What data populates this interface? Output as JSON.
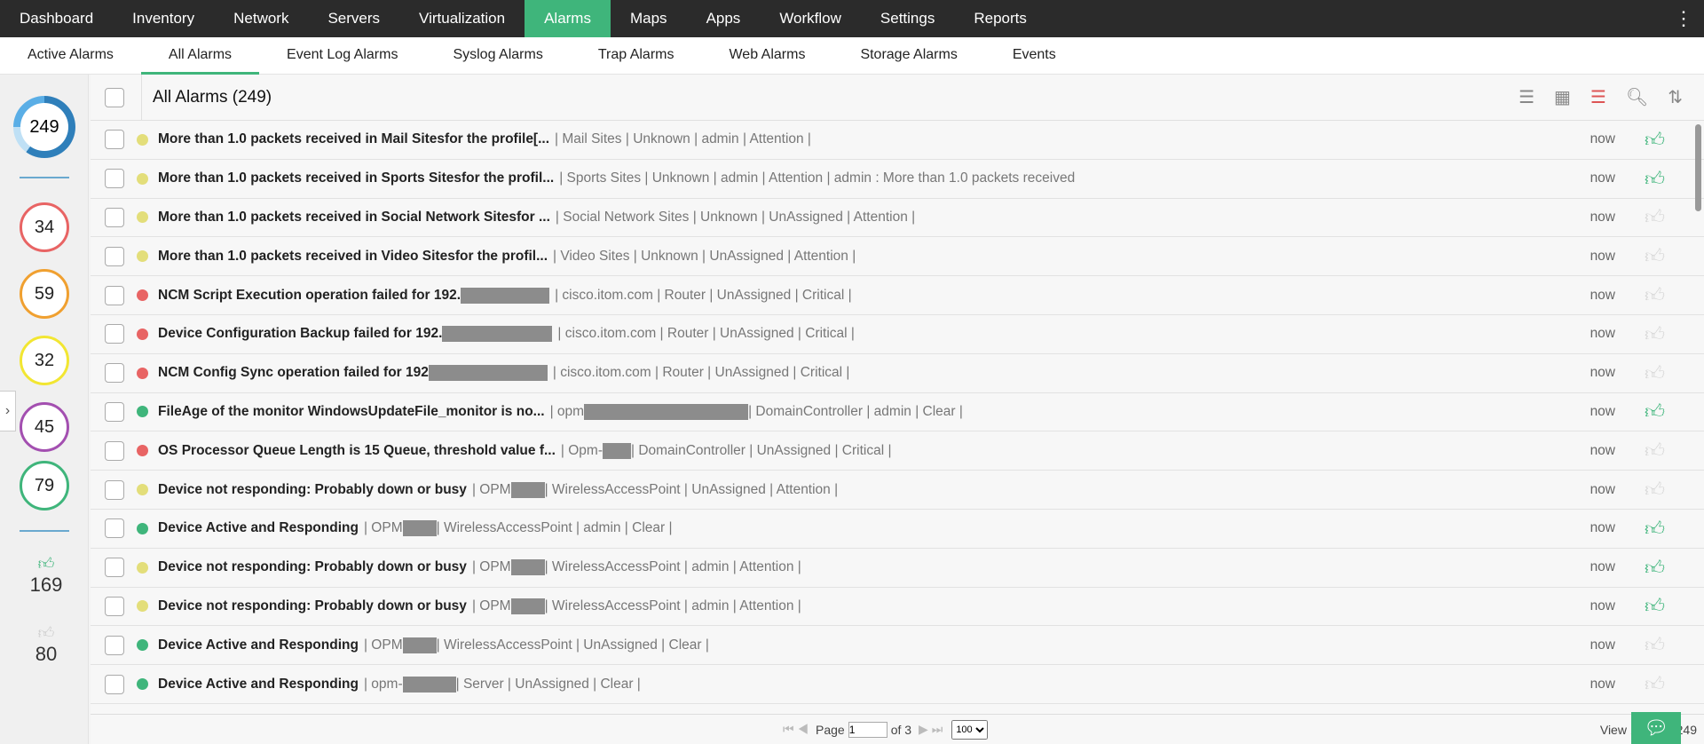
{
  "topnav": {
    "tabs": [
      "Dashboard",
      "Inventory",
      "Network",
      "Servers",
      "Virtualization",
      "Alarms",
      "Maps",
      "Apps",
      "Workflow",
      "Settings",
      "Reports"
    ],
    "active": "Alarms"
  },
  "subnav": {
    "tabs": [
      "Active Alarms",
      "All Alarms",
      "Event Log Alarms",
      "Syslog Alarms",
      "Trap Alarms",
      "Web Alarms",
      "Storage Alarms",
      "Events"
    ],
    "active": "All Alarms"
  },
  "sidebar": {
    "total": "249",
    "critical": "34",
    "trouble": "59",
    "attention": "32",
    "service_down": "45",
    "clear": "79",
    "acknowledged": "169",
    "unacknowledged": "80"
  },
  "colors": {
    "accent": "#3fb57b",
    "critical": "#e86464",
    "attention": "#e3de7a",
    "clear": "#3fb57b"
  },
  "header": {
    "title": "All Alarms (249)"
  },
  "rows": [
    {
      "msg": "More than 1.0 packets received in Mail Sitesfor the profile[...",
      "details": "| Mail Sites | Unknown | admin | Attention |",
      "severity": "attention",
      "time": "now",
      "ack": true
    },
    {
      "msg": "More than 1.0 packets received in Sports Sitesfor the profil...",
      "details": "| Sports Sites | Unknown | admin | Attention | admin : More than 1.0 packets received",
      "severity": "attention",
      "time": "now",
      "ack": true
    },
    {
      "msg": "More than 1.0 packets received in Social Network Sitesfor ...",
      "details": "| Social Network Sites | Unknown | UnAssigned | Attention |",
      "severity": "attention",
      "time": "now",
      "ack": false
    },
    {
      "msg": "More than 1.0 packets received in Video Sitesfor the profil...",
      "details": "| Video Sites | Unknown | UnAssigned | Attention |",
      "severity": "attention",
      "time": "now",
      "ack": false
    },
    {
      "msg": "NCM Script Execution operation failed for 192.",
      "details": "| cisco.itom.com | Router | UnAssigned | Critical |",
      "severity": "critical",
      "time": "now",
      "ack": false,
      "redact": 100
    },
    {
      "msg": "Device Configuration Backup failed for 192.",
      "details": "| cisco.itom.com | Router | UnAssigned | Critical |",
      "severity": "critical",
      "time": "now",
      "ack": false,
      "redact": 124
    },
    {
      "msg": "NCM Config Sync operation failed for 192",
      "details": "| cisco.itom.com | Router | UnAssigned | Critical |",
      "severity": "critical",
      "time": "now",
      "ack": false,
      "redact": 134
    },
    {
      "msg": "FileAge of the monitor WindowsUpdateFile_monitor is no...",
      "details": "| opm",
      "details2": "| DomainController | admin | Clear |",
      "severity": "clear",
      "time": "now",
      "ack": true,
      "redact": 185
    },
    {
      "msg": "OS Processor Queue Length is 15 Queue, threshold value f...",
      "details": "| Opm-",
      "details2": "| DomainController | UnAssigned | Critical |",
      "severity": "critical",
      "time": "now",
      "ack": false,
      "redact": 32
    },
    {
      "msg": "Device not responding: Probably down or busy",
      "details": "| OPM",
      "details2": "| WirelessAccessPoint | UnAssigned | Attention |",
      "severity": "attention",
      "time": "now",
      "ack": false,
      "redact": 38
    },
    {
      "msg": "Device Active and Responding",
      "details": "| OPM",
      "details2": "| WirelessAccessPoint | admin | Clear |",
      "severity": "clear",
      "time": "now",
      "ack": true,
      "redact": 38
    },
    {
      "msg": "Device not responding: Probably down or busy",
      "details": "| OPM",
      "details2": "| WirelessAccessPoint | admin | Attention |",
      "severity": "attention",
      "time": "now",
      "ack": true,
      "redact": 38
    },
    {
      "msg": "Device not responding: Probably down or busy",
      "details": "| OPM",
      "details2": "| WirelessAccessPoint | admin | Attention |",
      "severity": "attention",
      "time": "now",
      "ack": true,
      "redact": 38
    },
    {
      "msg": "Device Active and Responding",
      "details": "| OPM",
      "details2": "| WirelessAccessPoint | UnAssigned | Clear |",
      "severity": "clear",
      "time": "now",
      "ack": false,
      "redact": 38
    },
    {
      "msg": "Device Active and Responding",
      "details": "| opm-",
      "details2": "| Server | UnAssigned | Clear |",
      "severity": "clear",
      "time": "now",
      "ack": false,
      "redact": 60
    }
  ],
  "pager": {
    "page_label": "Page",
    "page": "1",
    "of_label": "of 3",
    "page_size": "100",
    "view_label": "View 1",
    "total": "249"
  }
}
